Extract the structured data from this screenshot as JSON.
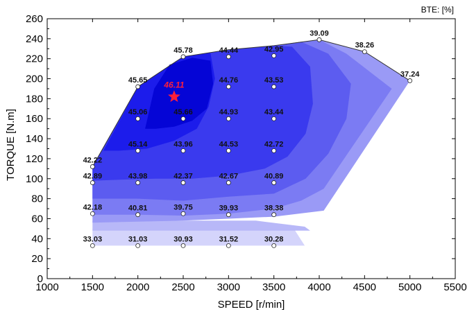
{
  "chart_data": {
    "type": "contour",
    "xlabel": "SPEED [r/min]",
    "ylabel": "TORQUE [N.m]",
    "unit_label": "BTE: [%]",
    "xlim": [
      1000,
      5500
    ],
    "ylim": [
      0,
      260
    ],
    "xticks": [
      1000,
      1500,
      2000,
      2500,
      3000,
      3500,
      4000,
      4500,
      5000,
      5500
    ],
    "yticks": [
      0,
      20,
      40,
      60,
      80,
      100,
      120,
      140,
      160,
      180,
      200,
      220,
      240,
      260
    ],
    "grid": false,
    "boundary": [
      [
        1500,
        33
      ],
      [
        1500,
        112
      ],
      [
        2000,
        192
      ],
      [
        2500,
        222
      ],
      [
        3000,
        229
      ],
      [
        3500,
        233
      ],
      [
        4000,
        239
      ],
      [
        4500,
        227
      ],
      [
        5000,
        198
      ],
      [
        3700,
        33
      ]
    ],
    "points": [
      {
        "x": 1500,
        "y": 33,
        "v": "33.03"
      },
      {
        "x": 2000,
        "y": 33,
        "v": "31.03"
      },
      {
        "x": 2500,
        "y": 33,
        "v": "30.93"
      },
      {
        "x": 3000,
        "y": 33,
        "v": "31.52"
      },
      {
        "x": 3500,
        "y": 33,
        "v": "30.28"
      },
      {
        "x": 1500,
        "y": 65,
        "v": "42.18"
      },
      {
        "x": 2000,
        "y": 64,
        "v": "40.81"
      },
      {
        "x": 2500,
        "y": 65,
        "v": "39.75"
      },
      {
        "x": 3000,
        "y": 64,
        "v": "39.93"
      },
      {
        "x": 3500,
        "y": 64,
        "v": "38.38"
      },
      {
        "x": 1500,
        "y": 96,
        "v": "42.89"
      },
      {
        "x": 2000,
        "y": 96,
        "v": "43.98"
      },
      {
        "x": 2500,
        "y": 96,
        "v": "42.37"
      },
      {
        "x": 3000,
        "y": 96,
        "v": "42.67"
      },
      {
        "x": 3500,
        "y": 96,
        "v": "40.89"
      },
      {
        "x": 1500,
        "y": 112,
        "v": "42.22"
      },
      {
        "x": 2000,
        "y": 128,
        "v": "45.14"
      },
      {
        "x": 2500,
        "y": 128,
        "v": "43.96"
      },
      {
        "x": 3000,
        "y": 128,
        "v": "44.53"
      },
      {
        "x": 3500,
        "y": 128,
        "v": "42.72"
      },
      {
        "x": 2000,
        "y": 160,
        "v": "45.06"
      },
      {
        "x": 2500,
        "y": 160,
        "v": "45.66"
      },
      {
        "x": 3000,
        "y": 160,
        "v": "44.93"
      },
      {
        "x": 3500,
        "y": 160,
        "v": "43.44"
      },
      {
        "x": 2000,
        "y": 192,
        "v": "45.65"
      },
      {
        "x": 3000,
        "y": 192,
        "v": "44.76"
      },
      {
        "x": 3500,
        "y": 192,
        "v": "43.53"
      },
      {
        "x": 2500,
        "y": 222,
        "v": "45.78"
      },
      {
        "x": 3000,
        "y": 222,
        "v": "44.44"
      },
      {
        "x": 3500,
        "y": 223,
        "v": "42.95"
      },
      {
        "x": 4000,
        "y": 239,
        "v": "39.09"
      },
      {
        "x": 4500,
        "y": 227,
        "v": "38.26"
      },
      {
        "x": 5000,
        "y": 198,
        "v": "37.24"
      }
    ],
    "peak": {
      "x": 2400,
      "y": 182,
      "v": "46.11",
      "color": "#ff1f3a"
    },
    "contour_bands": [
      {
        "color": "#d4d4fb",
        "poly": [
          [
            1500,
            33
          ],
          [
            1500,
            50
          ],
          [
            3720,
            50
          ],
          [
            3840,
            33
          ]
        ]
      },
      {
        "color": "#b8b8f8",
        "poly": [
          [
            1500,
            48
          ],
          [
            1500,
            58
          ],
          [
            3300,
            58
          ],
          [
            3840,
            52
          ],
          [
            3900,
            48
          ]
        ]
      },
      {
        "color": "#9a9af6",
        "poly": [
          [
            1500,
            56
          ],
          [
            1500,
            112
          ],
          [
            2000,
            192
          ],
          [
            2500,
            222
          ],
          [
            3000,
            229
          ],
          [
            3500,
            233
          ],
          [
            4000,
            239
          ],
          [
            4500,
            227
          ],
          [
            5000,
            198
          ],
          [
            4050,
            68
          ],
          [
            3500,
            62
          ],
          [
            3000,
            60
          ],
          [
            2500,
            58
          ],
          [
            2000,
            57
          ]
        ]
      },
      {
        "color": "#7b7bf3",
        "poly": [
          [
            1500,
            64
          ],
          [
            1500,
            112
          ],
          [
            2000,
            192
          ],
          [
            2500,
            222
          ],
          [
            3000,
            229
          ],
          [
            3500,
            233
          ],
          [
            4000,
            239
          ],
          [
            4300,
            225
          ],
          [
            4800,
            190
          ],
          [
            4500,
            150
          ],
          [
            4050,
            90
          ],
          [
            3800,
            78
          ],
          [
            3500,
            70
          ],
          [
            3000,
            65
          ],
          [
            2500,
            63
          ],
          [
            2000,
            64
          ]
        ]
      },
      {
        "color": "#5c5cf0",
        "poly": [
          [
            1500,
            80
          ],
          [
            1500,
            112
          ],
          [
            2000,
            192
          ],
          [
            2500,
            222
          ],
          [
            3000,
            229
          ],
          [
            3500,
            233
          ],
          [
            3800,
            237
          ],
          [
            4100,
            225
          ],
          [
            4350,
            195
          ],
          [
            4300,
            160
          ],
          [
            4100,
            125
          ],
          [
            3850,
            100
          ],
          [
            3500,
            85
          ],
          [
            3000,
            82
          ],
          [
            2500,
            78
          ],
          [
            2000,
            80
          ]
        ]
      },
      {
        "color": "#3a3aee",
        "poly": [
          [
            1500,
            98
          ],
          [
            1500,
            112
          ],
          [
            2000,
            192
          ],
          [
            2500,
            222
          ],
          [
            3000,
            229
          ],
          [
            3500,
            233
          ],
          [
            3700,
            232
          ],
          [
            3900,
            212
          ],
          [
            3930,
            175
          ],
          [
            3850,
            145
          ],
          [
            3650,
            122
          ],
          [
            3400,
            110
          ],
          [
            3000,
            103
          ],
          [
            2600,
            100
          ],
          [
            2200,
            100
          ],
          [
            1800,
            99
          ]
        ]
      },
      {
        "color": "#1c1ceb",
        "poly": [
          [
            1620,
            128
          ],
          [
            2000,
            192
          ],
          [
            2500,
            222
          ],
          [
            2800,
            226
          ],
          [
            2850,
            200
          ],
          [
            2780,
            172
          ],
          [
            2650,
            150
          ],
          [
            2400,
            138
          ],
          [
            2100,
            130
          ],
          [
            1800,
            128
          ]
        ]
      },
      {
        "color": "#0505d6",
        "poly": [
          [
            2080,
            150
          ],
          [
            2180,
            190
          ],
          [
            2350,
            214
          ],
          [
            2600,
            221
          ],
          [
            2800,
            218
          ],
          [
            2830,
            195
          ],
          [
            2760,
            170
          ],
          [
            2600,
            158
          ],
          [
            2400,
            152
          ],
          [
            2200,
            150
          ]
        ]
      }
    ]
  }
}
